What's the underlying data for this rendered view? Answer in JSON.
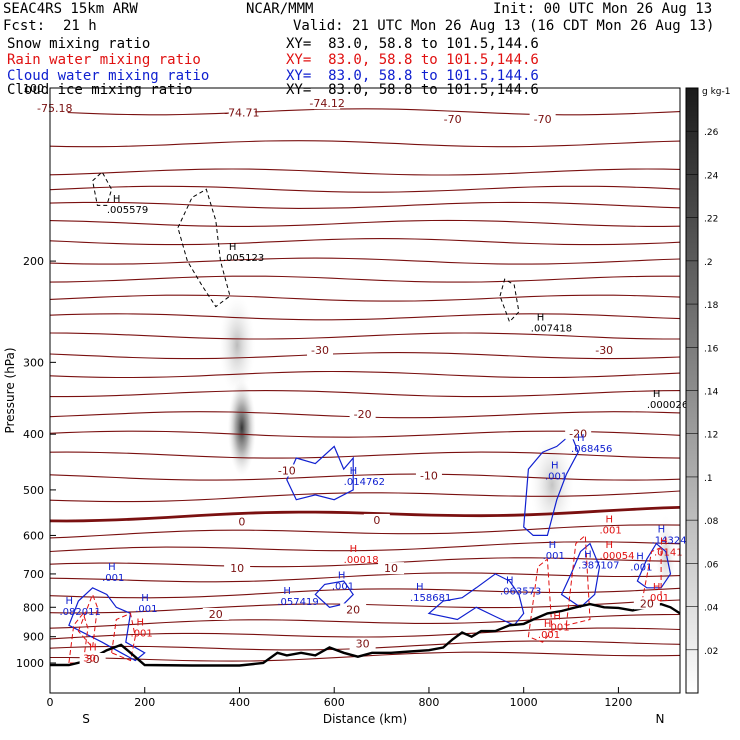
{
  "header": {
    "model": "SEAC4RS 15km ARW",
    "producer": "NCAR/MMM",
    "init": "Init: 00 UTC Mon 26 Aug 13",
    "fcst_label": "Fcst:",
    "fcst_value": "21 h",
    "valid": "Valid: 21 UTC Mon 26 Aug 13 (16 CDT Mon 26 Aug 13)",
    "fields": [
      {
        "name": "Snow mixing ratio",
        "xy": "XY=  83.0, 58.8 to 101.5,144.6",
        "color": "#000000"
      },
      {
        "name": "Rain water mixing ratio",
        "xy": "XY=  83.0, 58.8 to 101.5,144.6",
        "color": "#e01010"
      },
      {
        "name": "Cloud water mixing ratio",
        "xy": "XY=  83.0, 58.8 to 101.5,144.6",
        "color": "#1020d0"
      },
      {
        "name": "Cloud ice mixing ratio",
        "xy": "XY=  83.0, 58.8 to 101.5,144.6",
        "color": "#000000"
      }
    ]
  },
  "chart_data": {
    "type": "contour cross-section",
    "xlabel": "Distance (km)",
    "ylabel": "Pressure (hPa)",
    "xlim": [
      0,
      1330
    ],
    "ylim": [
      1050,
      100
    ],
    "y_scale": "log-pressure",
    "x_ticks": [
      0,
      200,
      400,
      600,
      800,
      1000,
      1200
    ],
    "x_tick_labels": [
      "0",
      "200",
      "400",
      "600",
      "800",
      "1000",
      "1200"
    ],
    "y_ticks": [
      100,
      200,
      300,
      400,
      500,
      600,
      700,
      800,
      900,
      1000
    ],
    "y_tick_labels": [
      "100",
      "200",
      "300",
      "400",
      "500",
      "600",
      "700",
      "800",
      "900",
      "1000"
    ],
    "endpoints": {
      "left": "S",
      "right": "N"
    },
    "colorbar": {
      "unit": "g kg-1",
      "ticks": [
        ".02",
        ".04",
        ".06",
        ".08",
        ".1",
        ".12",
        ".14",
        ".16",
        ".18",
        ".2",
        ".22",
        ".24",
        ".26"
      ],
      "range": [
        0,
        0.28
      ]
    },
    "terrain_surface": [
      [
        0,
        1008
      ],
      [
        40,
        1008
      ],
      [
        80,
        990
      ],
      [
        120,
        950
      ],
      [
        150,
        930
      ],
      [
        170,
        960
      ],
      [
        200,
        1008
      ],
      [
        300,
        1010
      ],
      [
        400,
        1010
      ],
      [
        450,
        1000
      ],
      [
        480,
        960
      ],
      [
        500,
        970
      ],
      [
        530,
        960
      ],
      [
        560,
        970
      ],
      [
        590,
        940
      ],
      [
        620,
        960
      ],
      [
        650,
        975
      ],
      [
        680,
        960
      ],
      [
        720,
        960
      ],
      [
        760,
        955
      ],
      [
        800,
        950
      ],
      [
        830,
        940
      ],
      [
        850,
        910
      ],
      [
        870,
        885
      ],
      [
        890,
        900
      ],
      [
        910,
        880
      ],
      [
        940,
        880
      ],
      [
        970,
        860
      ],
      [
        1000,
        855
      ],
      [
        1020,
        840
      ],
      [
        1050,
        820
      ],
      [
        1080,
        812
      ],
      [
        1110,
        800
      ],
      [
        1140,
        790
      ],
      [
        1170,
        800
      ],
      [
        1200,
        802
      ],
      [
        1230,
        810
      ],
      [
        1260,
        800
      ],
      [
        1290,
        790
      ],
      [
        1310,
        800
      ],
      [
        1330,
        820
      ]
    ],
    "temperature_contours_C": [
      {
        "value": "-74.71",
        "pos": [
          405,
          112
        ]
      },
      {
        "value": "-74.12",
        "pos": [
          585,
          108
        ]
      },
      {
        "value": "-75.18",
        "pos": [
          10,
          110
        ]
      },
      {
        "value": "-70",
        "pos": [
          850,
          115
        ]
      },
      {
        "value": "-70",
        "pos": [
          1040,
          115
        ]
      },
      {
        "value": "-30",
        "pos": [
          570,
          290
        ]
      },
      {
        "value": "-30",
        "pos": [
          1170,
          290
        ]
      },
      {
        "value": "-20",
        "pos": [
          660,
          375
        ]
      },
      {
        "value": "-20",
        "pos": [
          1115,
          405
        ]
      },
      {
        "value": "-10",
        "pos": [
          500,
          470
        ]
      },
      {
        "value": "-10",
        "pos": [
          800,
          480
        ]
      },
      {
        "value": "0",
        "pos": [
          405,
          577
        ]
      },
      {
        "value": "0",
        "pos": [
          690,
          573
        ]
      },
      {
        "value": "10",
        "pos": [
          395,
          695
        ]
      },
      {
        "value": "10",
        "pos": [
          720,
          695
        ]
      },
      {
        "value": "20",
        "pos": [
          350,
          835
        ]
      },
      {
        "value": "20",
        "pos": [
          640,
          820
        ]
      },
      {
        "value": "20",
        "pos": [
          1260,
          800
        ]
      },
      {
        "value": "30",
        "pos": [
          660,
          940
        ]
      },
      {
        "value": "30",
        "pos": [
          90,
          1000
        ]
      }
    ],
    "maxima_labels": [
      {
        "field": "snow",
        "value": ".005579",
        "pos": [
          120,
          165
        ]
      },
      {
        "field": "snow",
        "value": ".005123",
        "pos": [
          365,
          200
        ]
      },
      {
        "field": "snow",
        "value": ".007418",
        "pos": [
          1015,
          265
        ]
      },
      {
        "field": "snow",
        "value": ".000026",
        "pos": [
          1260,
          360
        ]
      },
      {
        "field": "cloud",
        "value": ".068456",
        "pos": [
          1100,
          430
        ]
      },
      {
        "field": "cloud",
        "value": ".001",
        "pos": [
          1045,
          480
        ]
      },
      {
        "field": "cloud",
        "value": ".014762",
        "pos": [
          620,
          490
        ]
      },
      {
        "field": "rain",
        "value": ".00018",
        "pos": [
          620,
          670
        ]
      },
      {
        "field": "cloud",
        "value": ".001",
        "pos": [
          1040,
          660
        ]
      },
      {
        "field": "cloud",
        "value": ".387107",
        "pos": [
          1115,
          685
        ]
      },
      {
        "field": "cloud",
        "value": ".143247",
        "pos": [
          1270,
          620
        ]
      },
      {
        "field": "rain",
        "value": ".00054",
        "pos": [
          1160,
          660
        ]
      },
      {
        "field": "rain",
        "value": ".0141",
        "pos": [
          1275,
          650
        ]
      },
      {
        "field": "rain",
        "value": ".001",
        "pos": [
          1160,
          595
        ]
      },
      {
        "field": "cloud",
        "value": ".001",
        "pos": [
          1225,
          690
        ]
      },
      {
        "field": "cloud",
        "value": ".001",
        "pos": [
          595,
          745
        ]
      },
      {
        "field": "cloud",
        "value": ".063573",
        "pos": [
          950,
          760
        ]
      },
      {
        "field": "cloud",
        "value": ".158681",
        "pos": [
          760,
          780
        ]
      },
      {
        "field": "cloud",
        "value": ".057419",
        "pos": [
          480,
          792
        ]
      },
      {
        "field": "cloud",
        "value": ".001",
        "pos": [
          110,
          720
        ]
      },
      {
        "field": "cloud",
        "value": ".001",
        "pos": [
          180,
          815
        ]
      },
      {
        "field": "cloud",
        "value": ".082011",
        "pos": [
          20,
          825
        ]
      },
      {
        "field": "rain",
        "value": ".001",
        "pos": [
          1260,
          780
        ]
      },
      {
        "field": "rain",
        "value": ".001",
        "pos": [
          1050,
          878
        ]
      },
      {
        "field": "rain",
        "value": ".001",
        "pos": [
          1030,
          905
        ]
      },
      {
        "field": "rain",
        "value": ".001",
        "pos": [
          170,
          900
        ]
      },
      {
        "field": "rain",
        "value": "30",
        "pos": [
          70,
          995
        ]
      }
    ]
  }
}
